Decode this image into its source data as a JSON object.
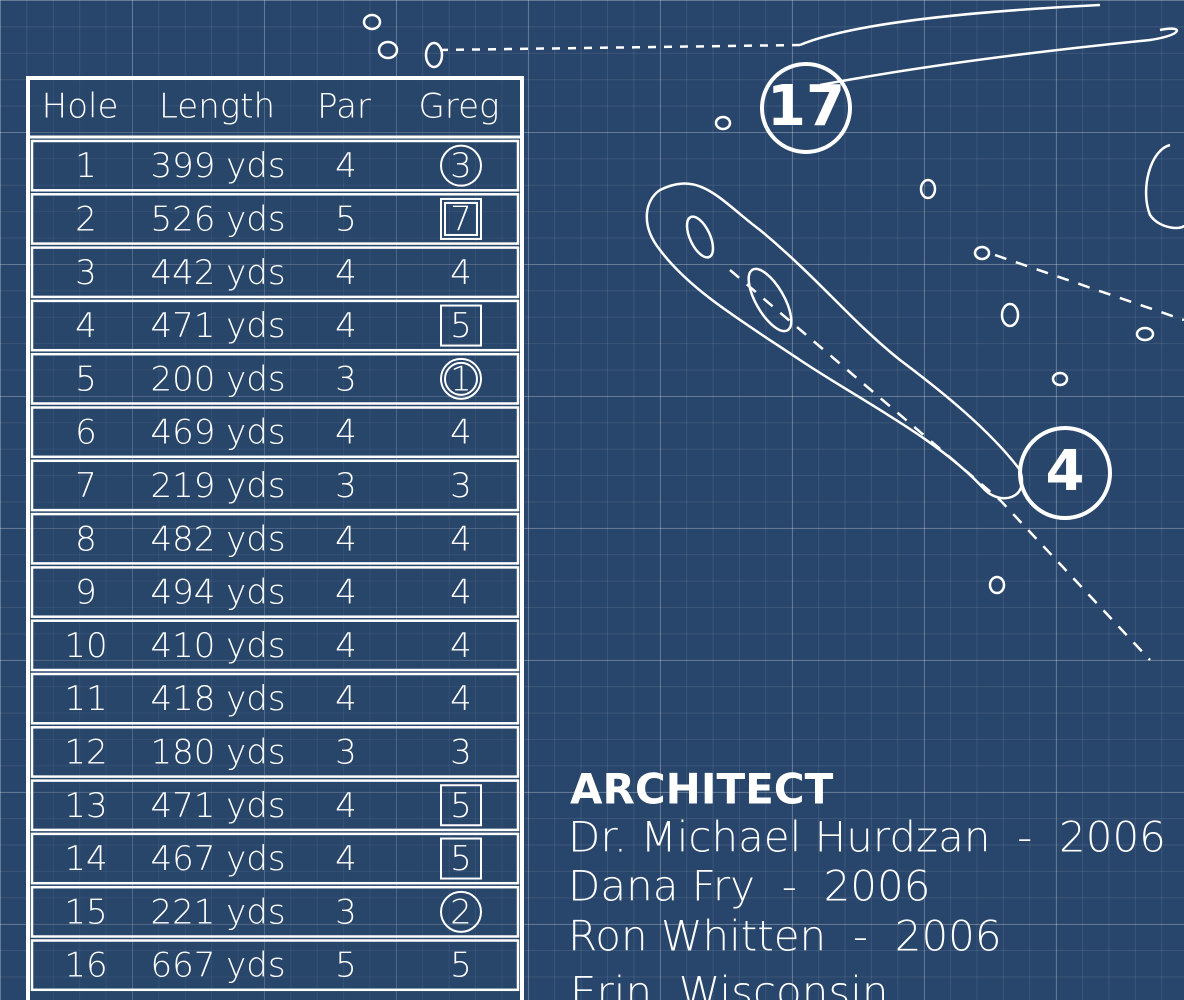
{
  "table": {
    "header": [
      "Hole",
      "Length",
      "Par",
      "Greg"
    ],
    "rows": [
      [
        "1",
        "399 yds",
        "4",
        "3"
      ],
      [
        "2",
        "526 yds",
        "5",
        "7"
      ],
      [
        "3",
        "442 yds",
        "4",
        "4"
      ],
      [
        "4",
        "471 yds",
        "4",
        "5"
      ],
      [
        "5",
        "200 yds",
        "3",
        "1"
      ],
      [
        "6",
        "469 yds",
        "4",
        "4"
      ],
      [
        "7",
        "219 yds",
        "3",
        "3"
      ],
      [
        "8",
        "482 yds",
        "4",
        "4"
      ],
      [
        "9",
        "494 yds",
        "4",
        "4"
      ],
      [
        "10",
        "410 yds",
        "4",
        "4"
      ],
      [
        "11",
        "418 yds",
        "4",
        "4"
      ],
      [
        "12",
        "180 yds",
        "3",
        "3"
      ],
      [
        "13",
        "471 yds",
        "4",
        "5"
      ],
      [
        "14",
        "467 yds",
        "4",
        "5"
      ],
      [
        "15",
        "221 yds",
        "3",
        "2"
      ],
      [
        "16",
        "667 yds",
        "5",
        "5"
      ]
    ]
  },
  "map": {
    "hole_labels": [
      "17",
      "4"
    ]
  },
  "architect": {
    "title": "ARCHITECT",
    "lines": [
      "Dr. Michael Hurdzan  -  2006",
      "Dana Fry  -  2006",
      "Ron Whitten  -  2006"
    ],
    "location": "Erin, Wisconsin"
  }
}
